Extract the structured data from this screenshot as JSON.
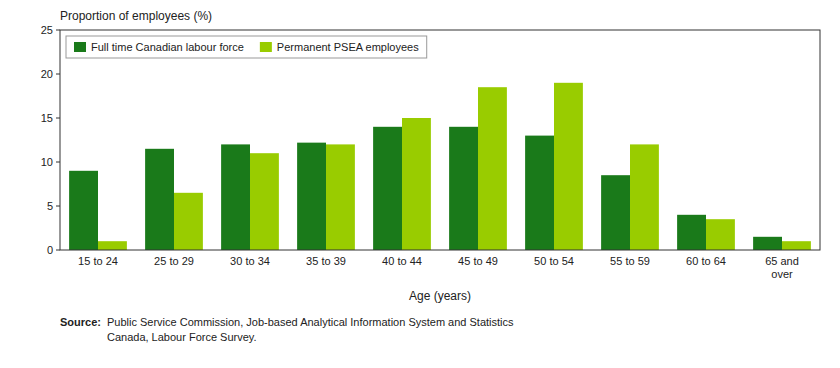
{
  "chart_data": {
    "type": "bar",
    "categories": [
      "15 to 24",
      "25 to 29",
      "30 to 34",
      "35 to 39",
      "40 to 44",
      "45 to 49",
      "50 to 54",
      "55 to 59",
      "60 to 64",
      "65 and\nover"
    ],
    "series": [
      {
        "name": "Full time Canadian labour force",
        "color": "#1a7a1a",
        "values": [
          9.0,
          11.5,
          12.0,
          12.2,
          14.0,
          14.0,
          13.0,
          8.5,
          4.0,
          1.5
        ]
      },
      {
        "name": "Permanent PSEA employees",
        "color": "#99cc00",
        "values": [
          1.0,
          6.5,
          11.0,
          12.0,
          15.0,
          18.5,
          19.0,
          12.0,
          3.5,
          1.0
        ]
      }
    ],
    "x_label": "Age (years)",
    "y_label": "Proportion of employees (%)",
    "ylim": [
      0,
      25
    ],
    "yticks": [
      0,
      5,
      10,
      15,
      20,
      25
    ],
    "grid": false,
    "legend": "upper left",
    "source": {
      "label": "Source:",
      "lines": [
        "Public Service Commission, Job-based Analytical Information System and Statistics",
        "Canada, Labour Force Survey."
      ]
    }
  }
}
